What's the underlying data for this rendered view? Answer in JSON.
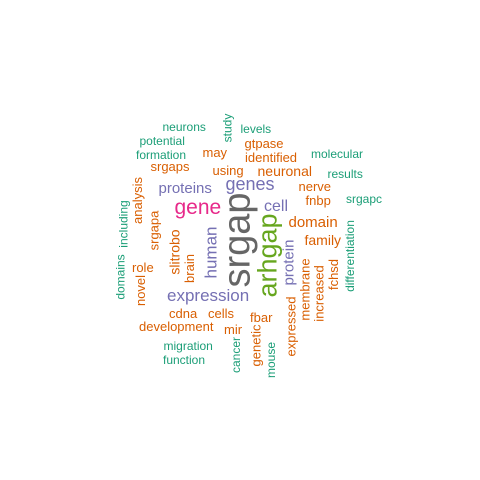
{
  "colors": {
    "gray": "#666666",
    "green": "#66a61e",
    "magenta": "#e7298a",
    "purple": "#7570b3",
    "orange": "#d95f02",
    "teal": "#1b9e77"
  },
  "words": [
    {
      "text": "srgap",
      "color": "gray"
    },
    {
      "text": "arhgap",
      "color": "green"
    },
    {
      "text": "gene",
      "color": "magenta"
    },
    {
      "text": "genes",
      "color": "purple"
    },
    {
      "text": "expression",
      "color": "purple"
    },
    {
      "text": "proteins",
      "color": "purple"
    },
    {
      "text": "human",
      "color": "purple"
    },
    {
      "text": "cell",
      "color": "purple"
    },
    {
      "text": "protein",
      "color": "purple"
    },
    {
      "text": "domain",
      "color": "orange"
    },
    {
      "text": "family",
      "color": "orange"
    },
    {
      "text": "neuronal",
      "color": "orange"
    },
    {
      "text": "identified",
      "color": "orange"
    },
    {
      "text": "may",
      "color": "orange"
    },
    {
      "text": "gtpase",
      "color": "orange"
    },
    {
      "text": "nerve",
      "color": "orange"
    },
    {
      "text": "fnbp",
      "color": "orange"
    },
    {
      "text": "using",
      "color": "orange"
    },
    {
      "text": "srgaps",
      "color": "orange"
    },
    {
      "text": "slitrobo",
      "color": "orange"
    },
    {
      "text": "brain",
      "color": "orange"
    },
    {
      "text": "srgapa",
      "color": "orange"
    },
    {
      "text": "analysis",
      "color": "orange"
    },
    {
      "text": "role",
      "color": "orange"
    },
    {
      "text": "novel",
      "color": "orange"
    },
    {
      "text": "cdna",
      "color": "orange"
    },
    {
      "text": "cells",
      "color": "orange"
    },
    {
      "text": "fbar",
      "color": "orange"
    },
    {
      "text": "development",
      "color": "orange"
    },
    {
      "text": "mir",
      "color": "orange"
    },
    {
      "text": "membrane",
      "color": "orange"
    },
    {
      "text": "increased",
      "color": "orange"
    },
    {
      "text": "fchsd",
      "color": "orange"
    },
    {
      "text": "expressed",
      "color": "orange"
    },
    {
      "text": "genetic",
      "color": "orange"
    },
    {
      "text": "neurons",
      "color": "teal"
    },
    {
      "text": "potential",
      "color": "teal"
    },
    {
      "text": "formation",
      "color": "teal"
    },
    {
      "text": "study",
      "color": "teal"
    },
    {
      "text": "levels",
      "color": "teal"
    },
    {
      "text": "molecular",
      "color": "teal"
    },
    {
      "text": "results",
      "color": "teal"
    },
    {
      "text": "srgapc",
      "color": "teal"
    },
    {
      "text": "differentiation",
      "color": "teal"
    },
    {
      "text": "including",
      "color": "teal"
    },
    {
      "text": "domains",
      "color": "teal"
    },
    {
      "text": "migration",
      "color": "teal"
    },
    {
      "text": "function",
      "color": "teal"
    },
    {
      "text": "cancer",
      "color": "teal"
    },
    {
      "text": "mouse",
      "color": "teal"
    }
  ]
}
